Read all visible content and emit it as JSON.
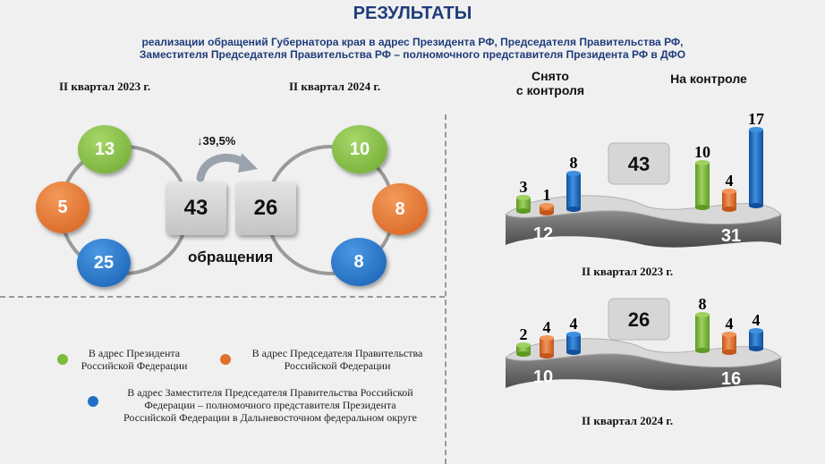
{
  "title": "РЕЗУЛЬТАТЫ",
  "subtitle_line1": "реализации обращений Губернатора края в адрес Президента РФ, Председателя Правительства РФ,",
  "subtitle_line2": "Заместителя Председателя Правительства РФ – полномочного представителя Президента РФ в ДФО",
  "left_panel": {
    "quarter_2023": "II квартал 2023 г.",
    "quarter_2024": "II квартал 2024 г.",
    "total_2023": "43",
    "total_2024": "26",
    "change": "↓39,5%",
    "caption": "обращения",
    "circles_2023": {
      "green": "13",
      "orange": "5",
      "blue": "25"
    },
    "circles_2024": {
      "green": "10",
      "orange": "8",
      "blue": "8"
    }
  },
  "colors": {
    "green": "#7dbb3a",
    "orange": "#e0712a",
    "blue": "#1f6fc4",
    "title": "#1f3c7a"
  },
  "legend": [
    {
      "color": "green",
      "text_line1": "В адрес Президента",
      "text_line2": "Российской Федерации"
    },
    {
      "color": "orange",
      "text_line1": "В адрес Председателя Правительства",
      "text_line2": "Российской Федерации"
    },
    {
      "color": "blue",
      "text_line1": "В адрес Заместителя Председателя Правительства Российской",
      "text_line2": "Федерации – полномочного представителя Президента",
      "text_line3": "Российской Федерации в Дальневосточном федеральном округе"
    }
  ],
  "right_panel": {
    "header_removed_line1": "Снято",
    "header_removed_line2": "с контроля",
    "header_control": "На контроле"
  },
  "chart_data": [
    {
      "type": "bar",
      "title": "II квартал 2023 г.",
      "total": 43,
      "groups": [
        {
          "name": "Снято с контроля",
          "total": 12,
          "values": [
            3,
            1,
            8
          ]
        },
        {
          "name": "На контроле",
          "total": 31,
          "values": [
            10,
            4,
            17
          ]
        }
      ],
      "series_colors": [
        "green",
        "orange",
        "blue"
      ]
    },
    {
      "type": "bar",
      "title": "II квартал 2024 г.",
      "total": 26,
      "groups": [
        {
          "name": "Снято с контроля",
          "total": 10,
          "values": [
            2,
            4,
            4
          ]
        },
        {
          "name": "На контроле",
          "total": 16,
          "values": [
            8,
            4,
            4
          ]
        }
      ],
      "series_colors": [
        "green",
        "orange",
        "blue"
      ]
    }
  ]
}
